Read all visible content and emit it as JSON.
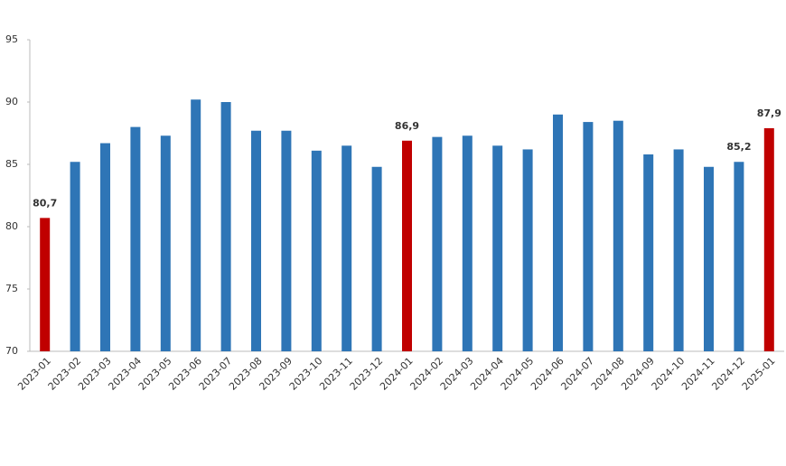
{
  "chart_data": {
    "type": "bar",
    "categories": [
      "2023-01",
      "2023-02",
      "2023-03",
      "2023-04",
      "2023-05",
      "2023-06",
      "2023-07",
      "2023-08",
      "2023-09",
      "2023-10",
      "2023-11",
      "2023-12",
      "2024-01",
      "2024-02",
      "2024-03",
      "2024-04",
      "2024-05",
      "2024-06",
      "2024-07",
      "2024-08",
      "2024-09",
      "2024-10",
      "2024-11",
      "2024-12",
      "2025-01"
    ],
    "values": [
      80.7,
      85.2,
      86.7,
      88.0,
      87.3,
      90.2,
      90.0,
      87.7,
      87.7,
      86.1,
      86.5,
      84.8,
      86.9,
      87.2,
      87.3,
      86.5,
      86.2,
      89.0,
      88.4,
      88.5,
      85.8,
      86.2,
      84.8,
      85.2,
      87.9
    ],
    "value_labels": [
      "80,7",
      null,
      null,
      null,
      null,
      null,
      null,
      null,
      null,
      null,
      null,
      null,
      "86,9",
      null,
      null,
      null,
      null,
      null,
      null,
      null,
      null,
      null,
      null,
      "85,2",
      "87,9"
    ],
    "colors": [
      "#c00000",
      "#2e75b6",
      "#2e75b6",
      "#2e75b6",
      "#2e75b6",
      "#2e75b6",
      "#2e75b6",
      "#2e75b6",
      "#2e75b6",
      "#2e75b6",
      "#2e75b6",
      "#2e75b6",
      "#c00000",
      "#2e75b6",
      "#2e75b6",
      "#2e75b6",
      "#2e75b6",
      "#2e75b6",
      "#2e75b6",
      "#2e75b6",
      "#2e75b6",
      "#2e75b6",
      "#2e75b6",
      "#2e75b6",
      "#c00000"
    ],
    "ylim": [
      70,
      95
    ],
    "yticks": [
      70,
      75,
      80,
      85,
      90,
      95
    ],
    "grid": false
  }
}
